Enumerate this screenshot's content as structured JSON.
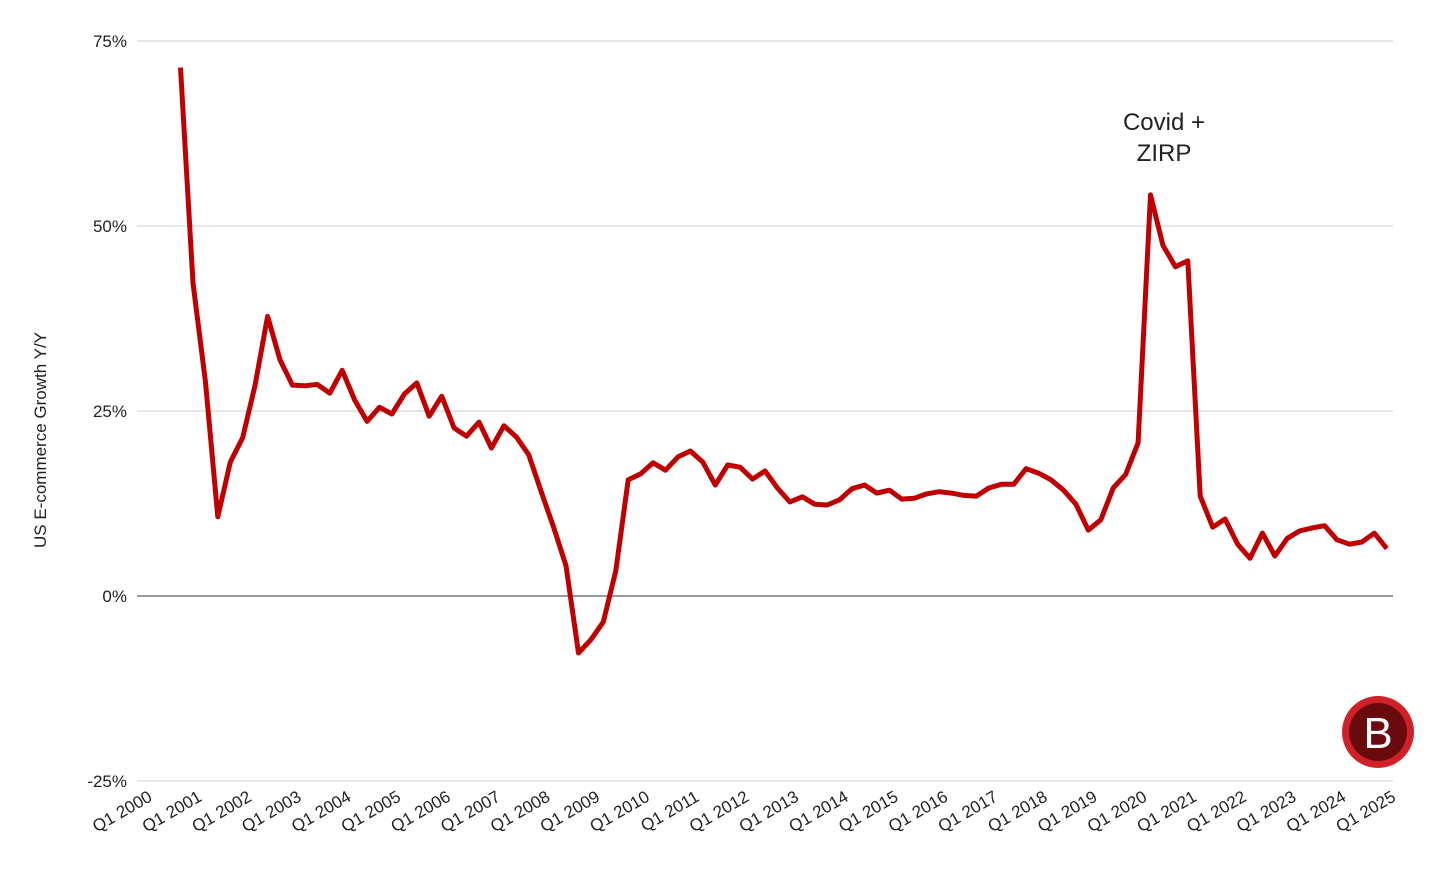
{
  "chart_data": {
    "type": "line",
    "y_label": "US E-commerce Growth Y/Y",
    "annotation": [
      "Covid +",
      "ZIRP"
    ],
    "logo": "B",
    "categories": [
      "Q1 2000",
      null,
      null,
      null,
      "Q1 2001",
      null,
      null,
      null,
      "Q1 2002",
      null,
      null,
      null,
      "Q1 2003",
      null,
      null,
      null,
      "Q1 2004",
      null,
      null,
      null,
      "Q1 2005",
      null,
      null,
      null,
      "Q1 2006",
      null,
      null,
      null,
      "Q1 2007",
      null,
      null,
      null,
      "Q1 2008",
      null,
      null,
      null,
      "Q1 2009",
      null,
      null,
      null,
      "Q1 2010",
      null,
      null,
      null,
      "Q1 2011",
      null,
      null,
      null,
      "Q1 2012",
      null,
      null,
      null,
      "Q1 2013",
      null,
      null,
      null,
      "Q1 2014",
      null,
      null,
      null,
      "Q1 2015",
      null,
      null,
      null,
      "Q1 2016",
      null,
      null,
      null,
      "Q1 2017",
      null,
      null,
      null,
      "Q1 2018",
      null,
      null,
      null,
      "Q1 2019",
      null,
      null,
      null,
      "Q1 2020",
      null,
      null,
      null,
      "Q1 2021",
      null,
      null,
      null,
      "Q1 2022",
      null,
      null,
      null,
      "Q1 2023",
      null,
      null,
      null,
      "Q1 2024",
      null,
      null,
      null,
      "Q1 2025"
    ],
    "series": [
      {
        "name": "US E-commerce Growth Y/Y",
        "color": "#c00000",
        "values": [
          null,
          null,
          null,
          71.4,
          42.3,
          29,
          10.7,
          18.1,
          21.4,
          28.5,
          37.8,
          31.9,
          28.5,
          28.4,
          28.6,
          27.4,
          30.5,
          26.5,
          23.6,
          25.5,
          24.6,
          27.3,
          28.8,
          24.3,
          27.0,
          22.7,
          21.6,
          23.5,
          20.0,
          23.0,
          21.5,
          19.1,
          14.1,
          9.3,
          4.1,
          -7.7,
          -5.9,
          -3.5,
          3.4,
          15.7,
          16.5,
          18.0,
          17.0,
          18.8,
          19.6,
          18.1,
          15.0,
          17.7,
          17.4,
          15.8,
          16.9,
          14.6,
          12.7,
          13.4,
          12.4,
          12.3,
          13.0,
          14.5,
          15.0,
          13.9,
          14.3,
          13.1,
          13.2,
          13.8,
          14.1,
          13.9,
          13.6,
          13.5,
          14.6,
          15.1,
          15.1,
          17.2,
          16.6,
          15.7,
          14.3,
          12.4,
          8.9,
          10.3,
          14.6,
          16.4,
          20.7,
          54.2,
          47.4,
          44.5,
          45.3,
          13.5,
          9.3,
          10.4,
          7.0,
          5.1,
          8.5,
          5.4,
          7.8,
          8.8,
          9.2,
          9.5,
          7.6,
          7.0,
          7.3,
          8.5,
          6.4
        ]
      }
    ],
    "ylim": [
      -25,
      75
    ],
    "yticks": [
      {
        "value": -25,
        "label": "-25%"
      },
      {
        "value": 0,
        "label": "0%"
      },
      {
        "value": 25,
        "label": "25%"
      },
      {
        "value": 50,
        "label": "50%"
      },
      {
        "value": 75,
        "label": "75%"
      }
    ],
    "grid": true
  }
}
